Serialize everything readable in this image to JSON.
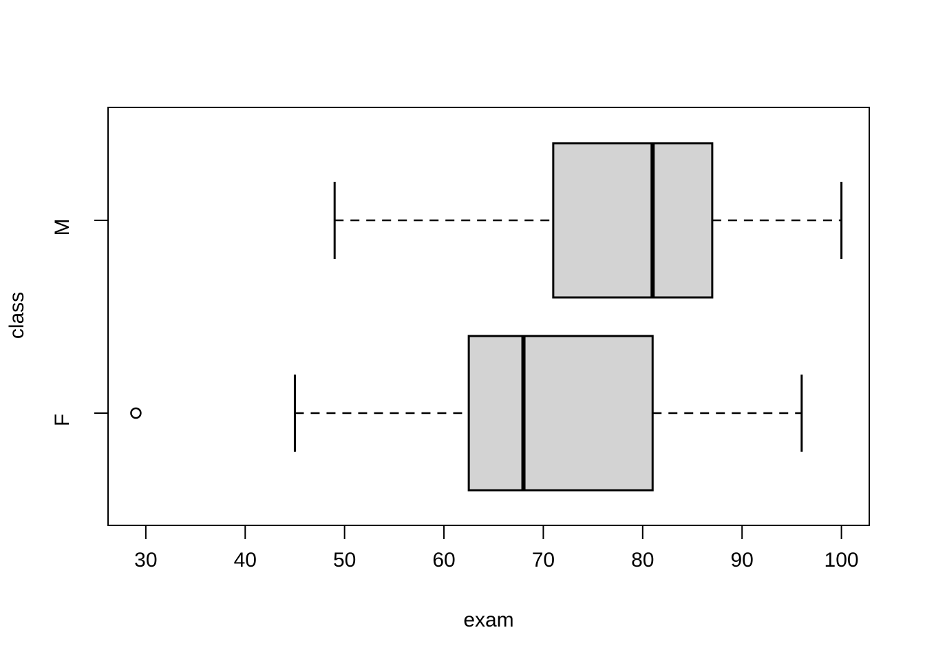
{
  "chart_data": {
    "type": "boxplot",
    "orientation": "horizontal",
    "title": "",
    "xlabel": "exam",
    "ylabel": "class",
    "xlim": [
      26.2,
      102.8
    ],
    "x_ticks": [
      30,
      40,
      50,
      60,
      70,
      80,
      90,
      100
    ],
    "categories": [
      "F",
      "M"
    ],
    "series": [
      {
        "name": "F",
        "whisker_low": 45,
        "q1": 62.5,
        "median": 68,
        "q3": 81,
        "whisker_high": 96,
        "outliers": [
          29
        ]
      },
      {
        "name": "M",
        "whisker_low": 49,
        "q1": 71,
        "median": 81,
        "q3": 87,
        "whisker_high": 100,
        "outliers": []
      }
    ],
    "grid": false,
    "legend": "none",
    "colors": {
      "box_fill": "#d3d3d3",
      "stroke": "#000000",
      "background": "#ffffff"
    }
  }
}
